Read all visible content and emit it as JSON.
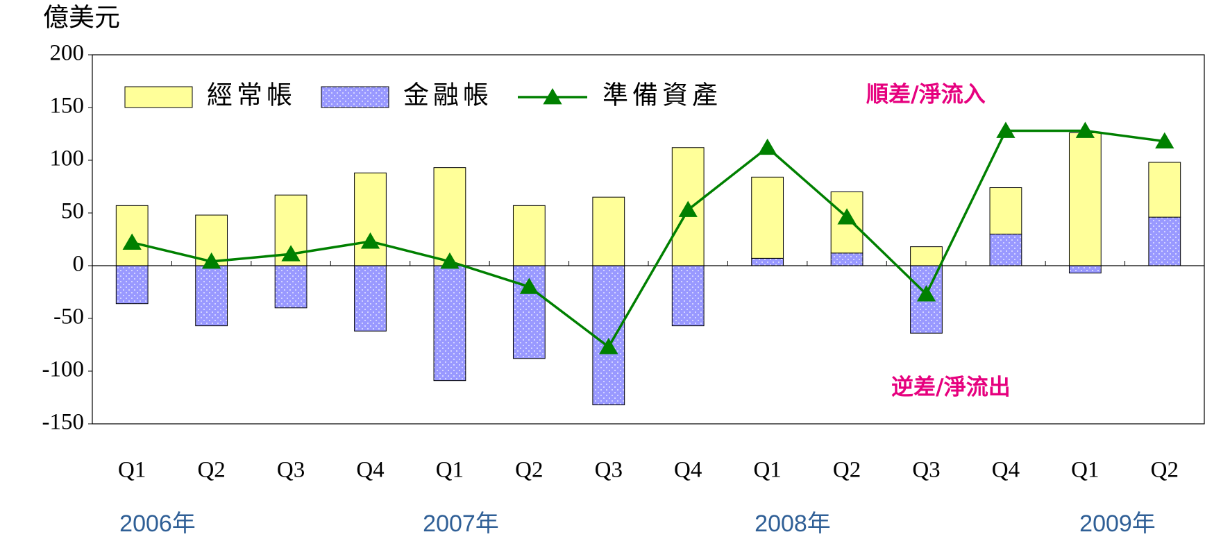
{
  "chart_data": {
    "type": "bar-line",
    "unit_label": "億美元",
    "categories": [
      "Q1",
      "Q2",
      "Q3",
      "Q4",
      "Q1",
      "Q2",
      "Q3",
      "Q4",
      "Q1",
      "Q2",
      "Q3",
      "Q4",
      "Q1",
      "Q2"
    ],
    "years": [
      "2006年",
      "2007年",
      "2008年",
      "2009年"
    ],
    "series": [
      {
        "name": "經常帳",
        "kind": "bar",
        "color": "#ffff99",
        "values": [
          57,
          48,
          67,
          88,
          93,
          57,
          65,
          112,
          77,
          58,
          18,
          44,
          126,
          52
        ]
      },
      {
        "name": "金融帳",
        "kind": "bar",
        "color": "#9999ff",
        "values": [
          -36,
          -57,
          -40,
          -62,
          -109,
          -88,
          -132,
          -57,
          7,
          12,
          -64,
          30,
          -7,
          46
        ]
      },
      {
        "name": "準備資產",
        "kind": "line",
        "color": "#008000",
        "values": [
          22,
          4,
          11,
          23,
          4,
          -20,
          -77,
          53,
          112,
          46,
          -27,
          128,
          128,
          118
        ]
      }
    ],
    "annotations": [
      "順差/淨流入",
      "逆差/淨流出"
    ],
    "ylim": [
      -150,
      200
    ],
    "yticks": [
      -150,
      -100,
      -50,
      0,
      50,
      100,
      150,
      200
    ],
    "legend": "top-left"
  }
}
